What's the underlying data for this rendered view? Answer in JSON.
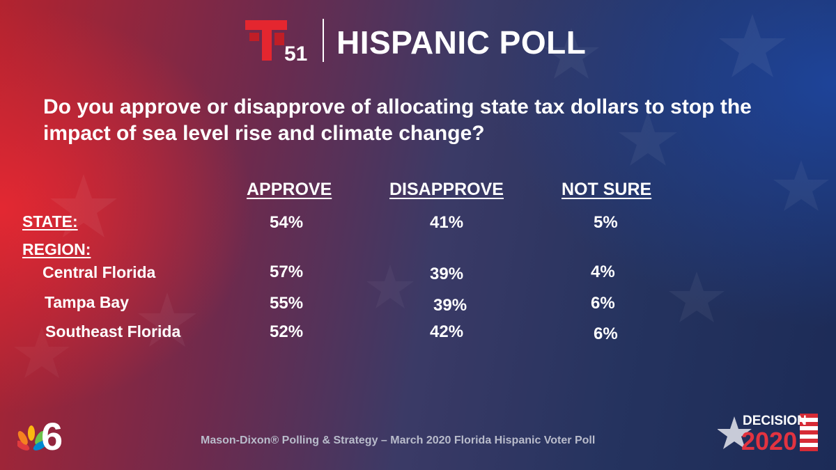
{
  "brand": {
    "logo_text": "51",
    "title": "HISPANIC POLL"
  },
  "question": "Do you approve or disapprove of allocating state tax dollars to stop the impact of sea level rise and climate change?",
  "columns": [
    "APPROVE",
    "DISAPPROVE",
    "NOT SURE"
  ],
  "state": {
    "label": "STATE:",
    "values": [
      "54%",
      "41%",
      "5%"
    ]
  },
  "region_label": "REGION:",
  "regions": [
    {
      "name": "Central Florida",
      "values": [
        "57%",
        "39%",
        "4%"
      ]
    },
    {
      "name": "Tampa Bay",
      "values": [
        "55%",
        "39%",
        "6%"
      ]
    },
    {
      "name": "Southeast Florida",
      "values": [
        "52%",
        "42%",
        "6%"
      ]
    }
  ],
  "source": "Mason-Dixon® Polling & Strategy – March 2020 Florida Hispanic Voter Poll",
  "footer_logos": {
    "station_number": "6",
    "decision_word": "DECISION",
    "decision_year": "2020"
  },
  "colors": {
    "telemundo_red": "#e4262f",
    "background_red": "#b3232f",
    "background_blue": "#1c2b57",
    "text": "#ffffff",
    "source_text": "#b9bccb"
  }
}
